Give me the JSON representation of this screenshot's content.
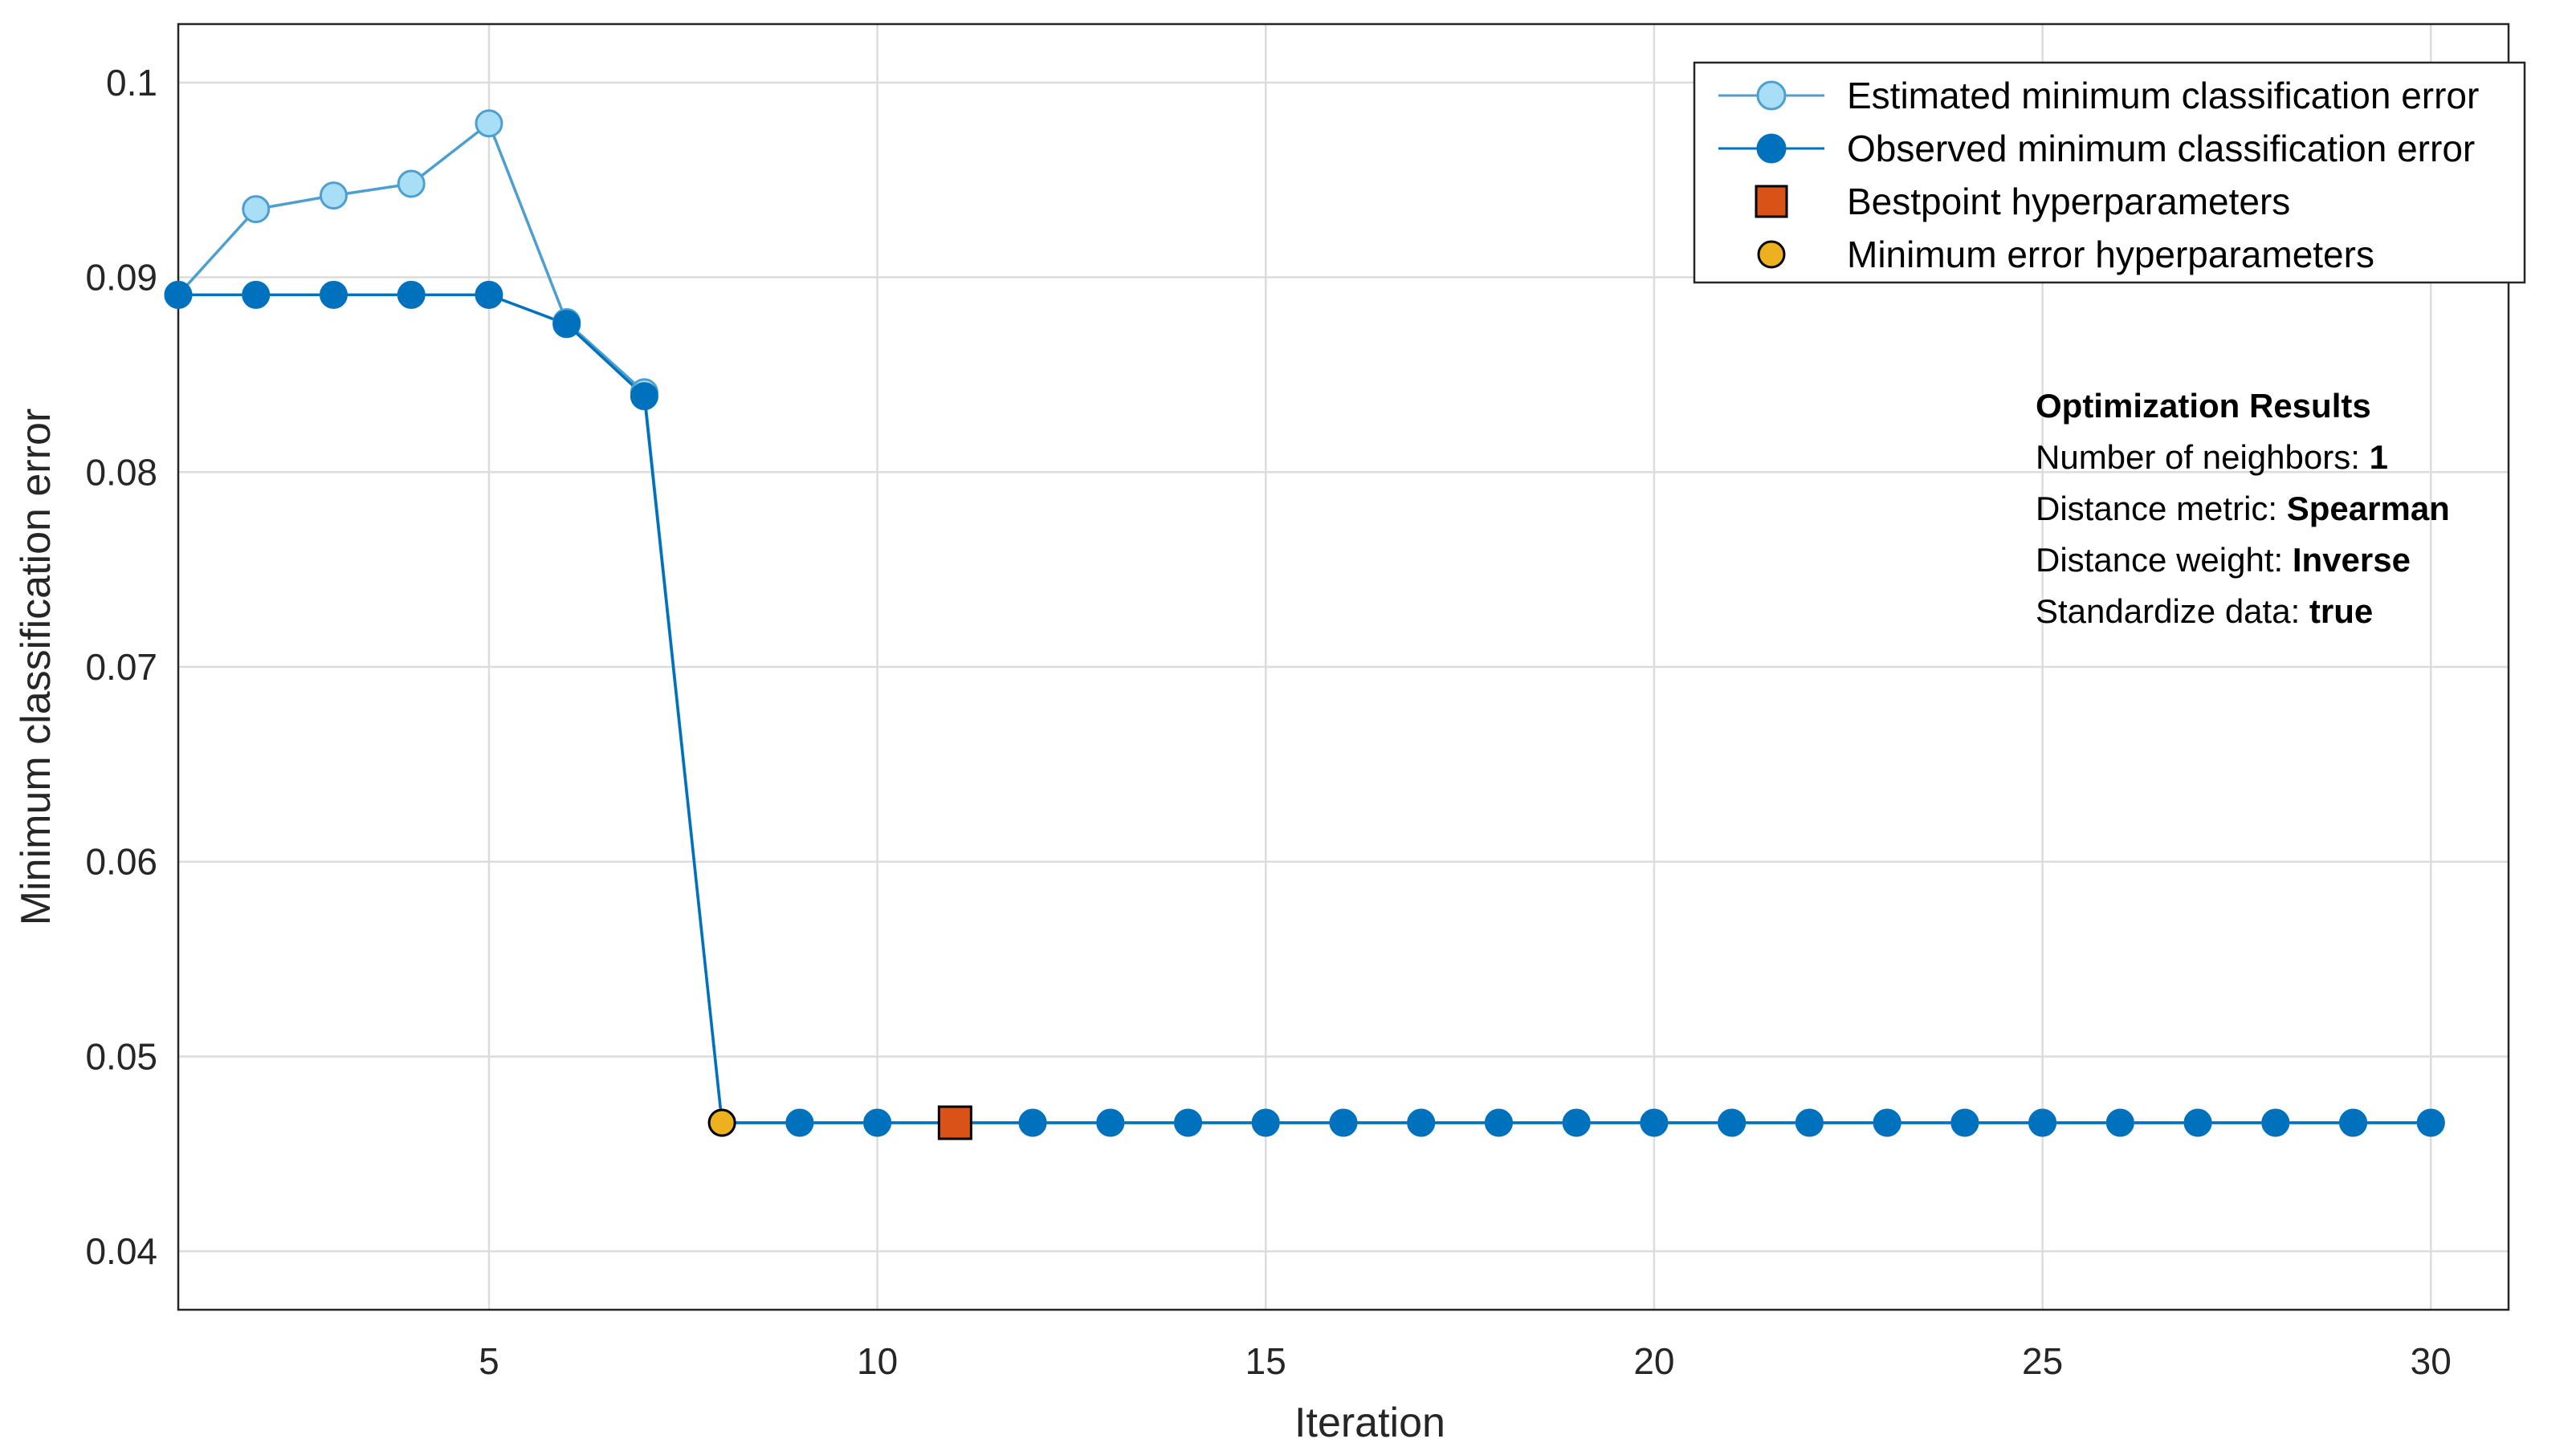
{
  "chart_data": {
    "type": "line",
    "xlabel": "Iteration",
    "ylabel": "Minimum classification error",
    "xlim": [
      1,
      31
    ],
    "ylim": [
      0.037,
      0.103
    ],
    "xticks": [
      5,
      10,
      15,
      20,
      25,
      30
    ],
    "xtick_labels": [
      "5",
      "10",
      "15",
      "20",
      "25",
      "30"
    ],
    "yticks": [
      0.04,
      0.05,
      0.06,
      0.07,
      0.08,
      0.09,
      0.1
    ],
    "ytick_labels": [
      "0.04",
      "0.05",
      "0.06",
      "0.07",
      "0.08",
      "0.09",
      "0.1"
    ],
    "grid": true,
    "legend_position": "top-right",
    "x": [
      1,
      2,
      3,
      4,
      5,
      6,
      7,
      8,
      9,
      10,
      11,
      12,
      13,
      14,
      15,
      16,
      17,
      18,
      19,
      20,
      21,
      22,
      23,
      24,
      25,
      26,
      27,
      28,
      29,
      30
    ],
    "series": [
      {
        "name": "Estimated minimum classification error",
        "color": "#4d9fcf",
        "marker_fill": "#a9def7",
        "values": [
          0.0891,
          0.0935,
          0.0942,
          0.0948,
          0.0979,
          0.0877,
          0.0841,
          0.0466,
          0.0466,
          0.0466,
          0.0466,
          0.0466,
          0.0466,
          0.0466,
          0.0466,
          0.0466,
          0.0466,
          0.0466,
          0.0466,
          0.0466,
          0.0466,
          0.0466,
          0.0466,
          0.0466,
          0.0466,
          0.0466,
          0.0466,
          0.0466,
          0.0466,
          0.0466
        ]
      },
      {
        "name": "Observed minimum classification error",
        "color": "#0072bd",
        "marker_fill": "#0072bd",
        "values": [
          0.0891,
          0.0891,
          0.0891,
          0.0891,
          0.0891,
          0.0876,
          0.0839,
          0.0466,
          0.0466,
          0.0466,
          0.0466,
          0.0466,
          0.0466,
          0.0466,
          0.0466,
          0.0466,
          0.0466,
          0.0466,
          0.0466,
          0.0466,
          0.0466,
          0.0466,
          0.0466,
          0.0466,
          0.0466,
          0.0466,
          0.0466,
          0.0466,
          0.0466,
          0.0466
        ]
      }
    ],
    "special_points": [
      {
        "name": "Bestpoint hyperparameters",
        "x": 11,
        "y": 0.0466,
        "marker": "square",
        "color": "#d95319"
      },
      {
        "name": "Minimum error hyperparameters",
        "x": 8,
        "y": 0.0466,
        "marker": "circle",
        "color": "#edb120"
      }
    ]
  },
  "results": {
    "title": "Optimization Results",
    "lines": [
      {
        "label": "Number of neighbors: ",
        "value": "1"
      },
      {
        "label": "Distance metric: ",
        "value": "Spearman"
      },
      {
        "label": "Distance weight: ",
        "value": "Inverse"
      },
      {
        "label": "Standardize data: ",
        "value": "true"
      }
    ]
  }
}
